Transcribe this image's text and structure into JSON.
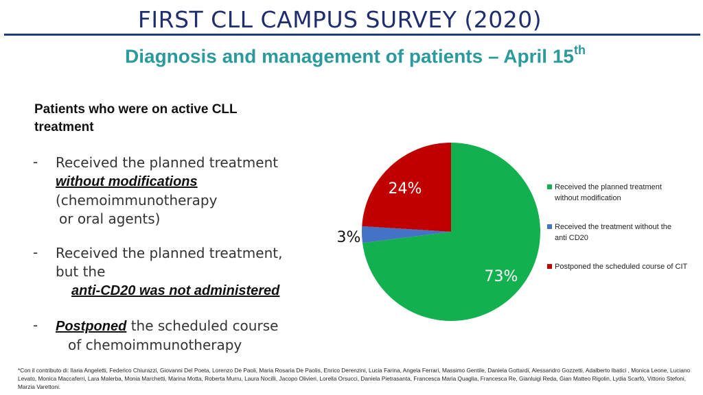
{
  "header": {
    "title": "FIRST CLL CAMPUS SURVEY (2020)",
    "subtitle_main": "Diagnosis and management of patients – April 15",
    "subtitle_sup": "th"
  },
  "left": {
    "heading_line1": "Patients who were on active CLL",
    "heading_line2": "treatment",
    "dash": "-",
    "item1": {
      "line1": "Received the planned treatment",
      "emph": "without modifications",
      "line3": "(chemoimmunotherapy",
      "line4": "or oral agents)"
    },
    "item2": {
      "line1": "Received the planned treatment,",
      "line2": "but the",
      "emph": "anti-CD20 was not administered"
    },
    "item3": {
      "emph": "Postponed",
      "line1_rest": " the scheduled course",
      "line2": "of chemoimmunotherapy"
    }
  },
  "chart_data": {
    "type": "pie",
    "start_angle_deg": 0,
    "direction": "clockwise",
    "series": [
      {
        "name": "Received the planned treatment without modification",
        "value": 73,
        "label": "73%",
        "color": "#13b050"
      },
      {
        "name": "Received the treatment without the anti CD20",
        "value": 3,
        "label": "3%",
        "color": "#4472c4"
      },
      {
        "name": "Postponed the scheduled course of CIT",
        "value": 24,
        "label": "24%",
        "color": "#c00000"
      }
    ],
    "legend": {
      "placement": "right",
      "items": [
        {
          "line1": "Received the planned treatment",
          "line2": "without modification",
          "color": "#13b050"
        },
        {
          "line1": "Received the treatment without the",
          "line2": "anti CD20",
          "color": "#4472c4"
        },
        {
          "line1": "Postponed the scheduled course of CIT",
          "line2": "",
          "color": "#c00000"
        }
      ]
    }
  },
  "footnote": "*Con il contributo di: Ilaria Angeletti, Federico Chiurazzi, Giovanni Del Poeta, Lorenzo De Paoli, Maria Rosaria De Paolis, Enrico Derenzini, Lucia Farina, Angela Ferrari, Massimo Gentile, Daniela Gottardi, Alessandro Gozzetti, Adalberto Ibatici , Monica Leone, Luciano Levato, Monica Maccaferri, Lara Malerba, Monia Marchetti, Marina Motta, Roberta Murru, Laura Nocilli, Jacopo Olivieri, Lorella Orsucci, Daniela Pietrasanta, Francesca Maria Quaglia, Francesca Re, Gianluigi Reda, Gian Matteo Rigolin, Lydia Scarfò, Vittorio Stefoni, Marzia Varettoni."
}
